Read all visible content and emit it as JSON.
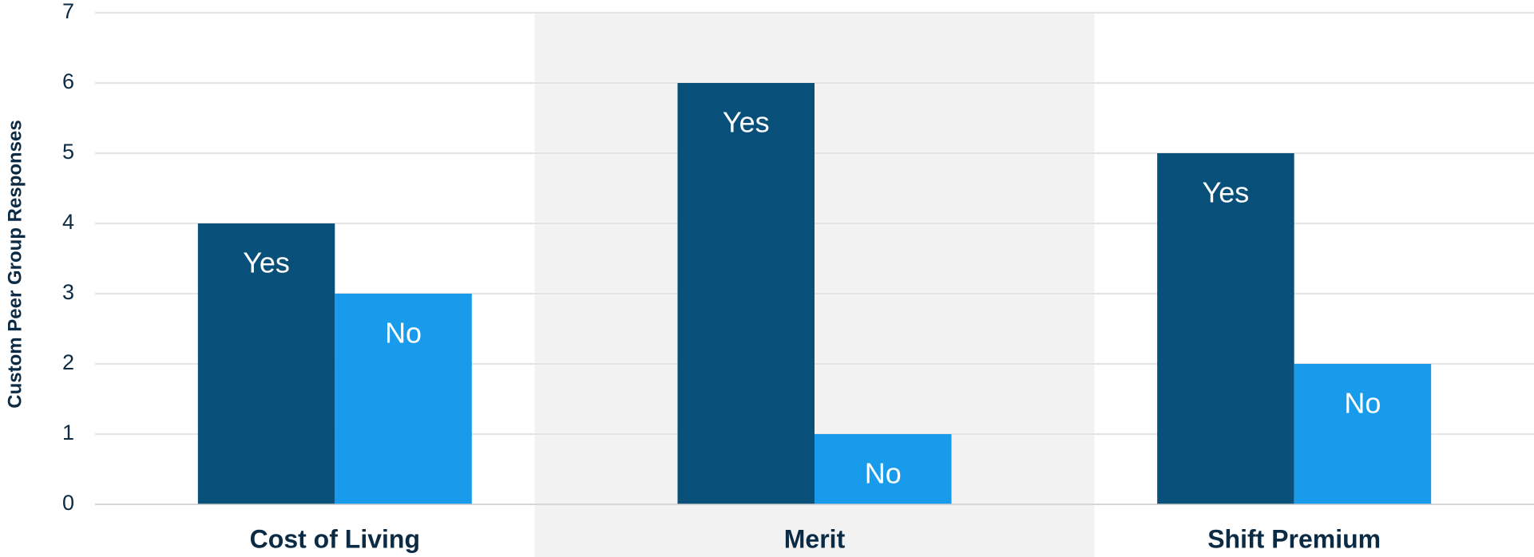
{
  "chart_data": {
    "type": "bar",
    "y_label": "Custom Peer Group Responses",
    "categories": [
      "Cost of Living",
      "Merit",
      "Shift Premium"
    ],
    "series": [
      {
        "name": "Yes",
        "color": "#08507a",
        "values": [
          4,
          6,
          5
        ]
      },
      {
        "name": "No",
        "color": "#179bea",
        "values": [
          3,
          1,
          2
        ]
      }
    ],
    "ylim": [
      0,
      7
    ],
    "yticks": [
      0,
      1,
      2,
      3,
      4,
      5,
      6,
      7
    ],
    "grid": true
  }
}
